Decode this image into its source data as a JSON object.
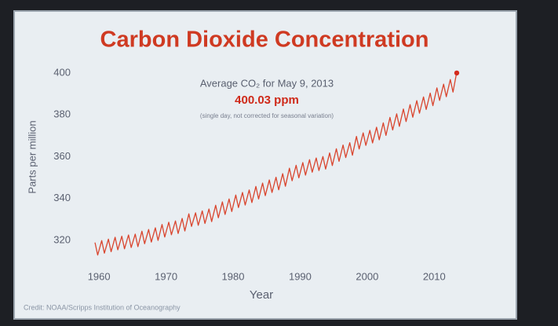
{
  "chart_data": {
    "type": "line",
    "title": "Carbon Dioxide Concentration",
    "x_label": "Year",
    "y_label": "Parts per million",
    "credit": "Credit: NOAA/Scripps Institution of Oceanography",
    "annotation": {
      "heading": "Average CO₂ for May 9, 2013",
      "note": "(single day, not corrected for seasonal variation)"
    },
    "marker": {
      "x": 2013.36,
      "value": 400.03,
      "value_label": "400.03 ppm",
      "color": "#d42a1c"
    },
    "color": "#d9452e",
    "xlim": [
      1956,
      2015
    ],
    "ylim": [
      311,
      403
    ],
    "xticks": [
      1960,
      1970,
      1980,
      1990,
      2000,
      2010
    ],
    "yticks": [
      320,
      340,
      360,
      380,
      400
    ],
    "grid": false,
    "x": [
      1959.4,
      1959.8,
      1960.4,
      1960.8,
      1961.4,
      1961.8,
      1962.4,
      1962.8,
      1963.4,
      1963.8,
      1964.4,
      1964.8,
      1965.4,
      1965.8,
      1966.4,
      1966.8,
      1967.4,
      1967.8,
      1968.4,
      1968.8,
      1969.4,
      1969.8,
      1970.4,
      1970.8,
      1971.4,
      1971.8,
      1972.4,
      1972.8,
      1973.4,
      1973.8,
      1974.4,
      1974.8,
      1975.4,
      1975.8,
      1976.4,
      1976.8,
      1977.4,
      1977.8,
      1978.4,
      1978.8,
      1979.4,
      1979.8,
      1980.4,
      1980.8,
      1981.4,
      1981.8,
      1982.4,
      1982.8,
      1983.4,
      1983.8,
      1984.4,
      1984.8,
      1985.4,
      1985.8,
      1986.4,
      1986.8,
      1987.4,
      1987.8,
      1988.4,
      1988.8,
      1989.4,
      1989.8,
      1990.4,
      1990.8,
      1991.4,
      1991.8,
      1992.4,
      1992.8,
      1993.4,
      1993.8,
      1994.4,
      1994.8,
      1995.4,
      1995.8,
      1996.4,
      1996.8,
      1997.4,
      1997.8,
      1998.4,
      1998.8,
      1999.4,
      1999.8,
      2000.4,
      2000.8,
      2001.4,
      2001.8,
      2002.4,
      2002.8,
      2003.4,
      2003.8,
      2004.4,
      2004.8,
      2005.4,
      2005.8,
      2006.4,
      2006.8,
      2007.4,
      2007.8,
      2008.4,
      2008.8,
      2009.4,
      2009.8,
      2010.4,
      2010.8,
      2011.4,
      2011.8,
      2012.4,
      2012.8,
      2013.3
    ],
    "values": [
      319.0,
      313.0,
      319.9,
      313.9,
      320.6,
      314.6,
      321.5,
      315.5,
      322.0,
      316.0,
      322.6,
      316.6,
      323.0,
      317.0,
      324.4,
      318.4,
      325.2,
      319.2,
      326.0,
      320.0,
      327.6,
      321.6,
      328.7,
      322.7,
      329.3,
      323.3,
      330.5,
      324.5,
      332.7,
      326.7,
      333.2,
      327.2,
      334.1,
      328.1,
      335.0,
      329.0,
      336.8,
      330.8,
      338.4,
      332.4,
      339.8,
      333.8,
      341.7,
      335.7,
      342.9,
      336.9,
      344.1,
      338.1,
      345.8,
      339.8,
      347.4,
      341.4,
      348.9,
      342.9,
      350.2,
      344.2,
      351.9,
      345.9,
      354.5,
      348.5,
      355.9,
      349.9,
      357.2,
      351.2,
      358.6,
      352.6,
      359.4,
      353.4,
      360.1,
      354.1,
      361.8,
      355.8,
      363.8,
      357.8,
      365.6,
      359.6,
      366.7,
      360.7,
      369.7,
      363.7,
      371.4,
      365.4,
      372.6,
      366.6,
      374.1,
      368.1,
      376.2,
      370.2,
      378.8,
      372.8,
      380.5,
      374.5,
      382.8,
      376.8,
      384.9,
      378.9,
      386.8,
      380.8,
      388.6,
      382.6,
      390.4,
      384.4,
      392.9,
      386.9,
      394.7,
      388.7,
      396.9,
      390.9,
      399.5
    ]
  }
}
